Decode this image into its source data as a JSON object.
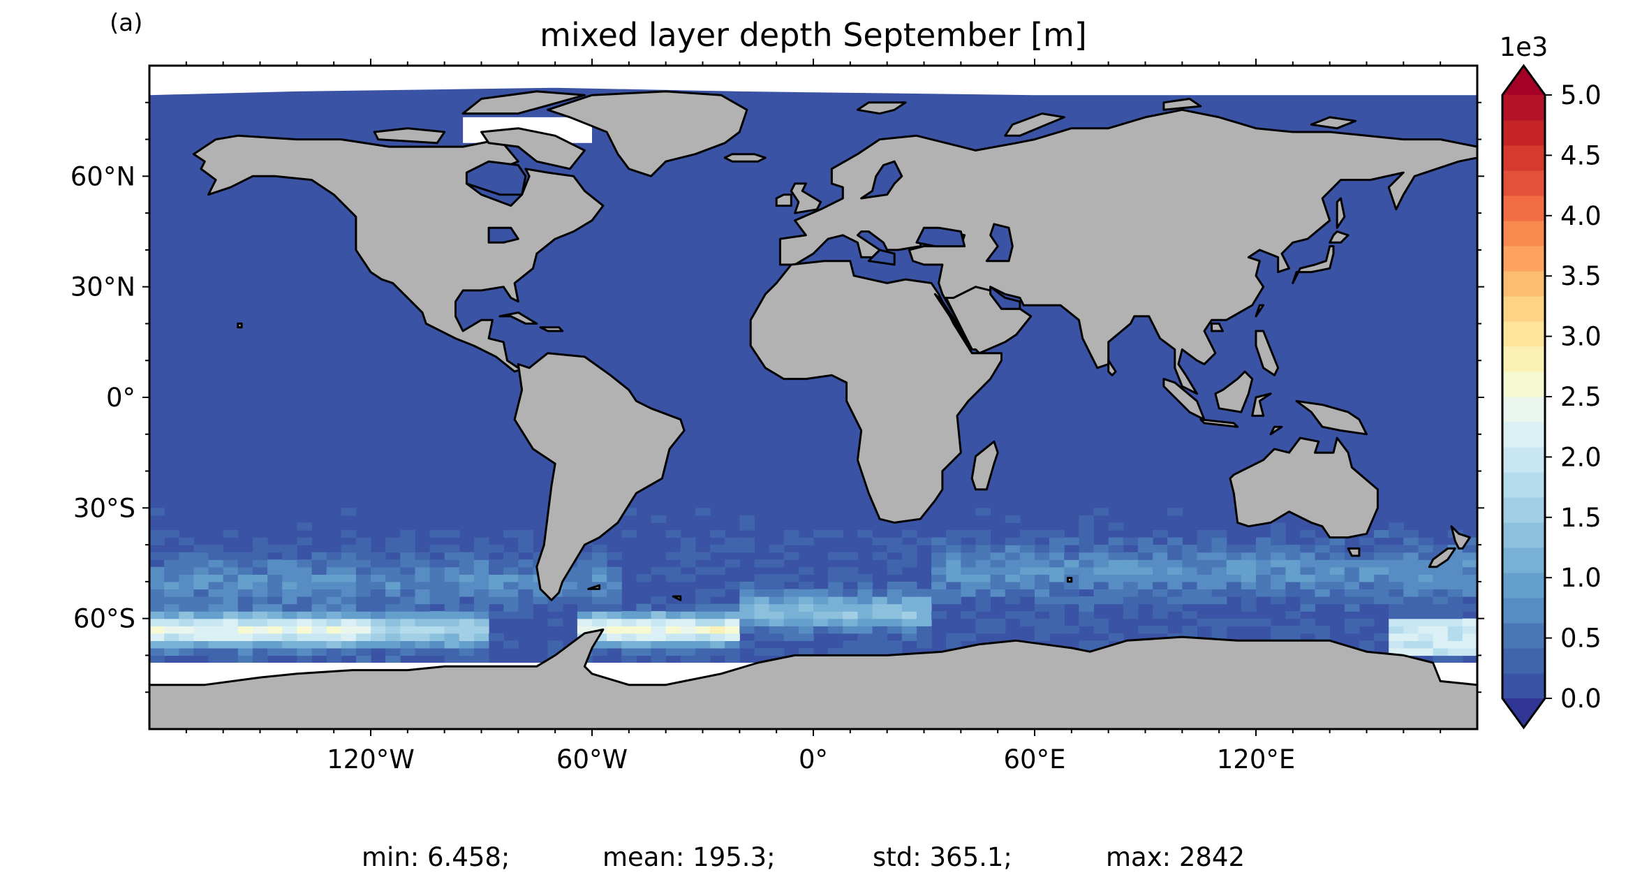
{
  "panel_label": "(a)",
  "title": "mixed layer depth September [m]",
  "map": {
    "projection": "PlateCarree",
    "lon_range": [
      -180,
      180
    ],
    "lat_range": [
      -90,
      90
    ],
    "lon_ticks": [
      {
        "value": -120,
        "label": "120°W"
      },
      {
        "value": -60,
        "label": "60°W"
      },
      {
        "value": 0,
        "label": "0°"
      },
      {
        "value": 60,
        "label": "60°E"
      },
      {
        "value": 120,
        "label": "120°E"
      }
    ],
    "lat_ticks": [
      {
        "value": 60,
        "label": "60°N"
      },
      {
        "value": 30,
        "label": "30°N"
      },
      {
        "value": 0,
        "label": "0°"
      },
      {
        "value": -30,
        "label": "30°S"
      },
      {
        "value": -60,
        "label": "60°S"
      }
    ],
    "colors": {
      "ocean": "#3a53a4",
      "land": "#b2b2b2",
      "coast": "#000000",
      "no_data": "#ffffff"
    }
  },
  "colorbar": {
    "multiplier_label": "1e3",
    "vmin": 0.0,
    "vmax": 5.0,
    "extend": "both",
    "ticks": [
      {
        "value": 0.0,
        "label": "0.0"
      },
      {
        "value": 0.5,
        "label": "0.5"
      },
      {
        "value": 1.0,
        "label": "1.0"
      },
      {
        "value": 1.5,
        "label": "1.5"
      },
      {
        "value": 2.0,
        "label": "2.0"
      },
      {
        "value": 2.5,
        "label": "2.5"
      },
      {
        "value": 3.0,
        "label": "3.0"
      },
      {
        "value": 3.5,
        "label": "3.5"
      },
      {
        "value": 4.0,
        "label": "4.0"
      },
      {
        "value": 4.5,
        "label": "4.5"
      },
      {
        "value": 5.0,
        "label": "5.0"
      }
    ],
    "under_color": "#313695",
    "over_color": "#a50026",
    "level_colors": [
      "#3a53a4",
      "#4065ad",
      "#4a78b7",
      "#578dc2",
      "#659fcb",
      "#78b1d5",
      "#8cc0dd",
      "#a2cfe5",
      "#b5dcec",
      "#c8e7f2",
      "#dbf0f5",
      "#eaf5ed",
      "#f6f9d2",
      "#fbf1b7",
      "#fee59c",
      "#fed385",
      "#fdbd70",
      "#fca45f",
      "#f88a4f",
      "#f26d43",
      "#e4513a",
      "#d63a2f",
      "#c52427",
      "#b41327"
    ]
  },
  "stats": {
    "min": "min: 6.458;",
    "mean": "mean: 195.3;",
    "std": "std: 365.1;",
    "max": "max: 2842"
  }
}
